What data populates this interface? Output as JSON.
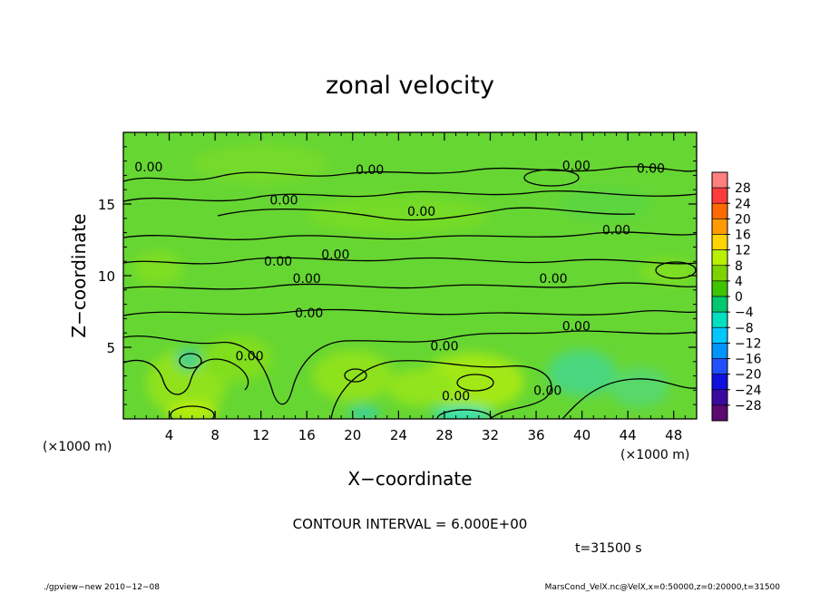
{
  "chart_data": {
    "type": "heatmap",
    "title": "zonal velocity",
    "xlabel": "X−coordinate",
    "ylabel": "Z−coordinate",
    "x_units_label": "(×1000 m)",
    "y_units_label": "(×1000 m)",
    "xlim": [
      0,
      50
    ],
    "ylim": [
      0,
      20
    ],
    "x_ticks": [
      4,
      8,
      12,
      16,
      20,
      24,
      28,
      32,
      36,
      40,
      44,
      48
    ],
    "y_ticks": [
      5,
      10,
      15
    ],
    "colorbar": {
      "labels": [
        "28",
        "24",
        "20",
        "16",
        "12",
        "8",
        "4",
        "0",
        "−4",
        "−8",
        "−12",
        "−16",
        "−20",
        "−24",
        "−28"
      ],
      "values": [
        28,
        24,
        20,
        16,
        12,
        8,
        4,
        0,
        -4,
        -8,
        -12,
        -16,
        -20,
        -24,
        -28
      ],
      "colors": [
        "#ff7f7f",
        "#ff3b3b",
        "#ff6a00",
        "#ff9a00",
        "#ffd400",
        "#b8f000",
        "#7ed200",
        "#3fc400",
        "#00c86e",
        "#00e0c0",
        "#00c8ff",
        "#0094ff",
        "#2050ff",
        "#1010e0",
        "#3a0aa0",
        "#5a0a70"
      ]
    },
    "field": {
      "background": "#66d633",
      "patches": [
        {
          "x": 5.5,
          "z": 2.5,
          "rx": 3.5,
          "rz": 2.4,
          "color": "#8fe21a"
        },
        {
          "x": 10,
          "z": 4.2,
          "rx": 3,
          "rz": 1.6,
          "color": "#80de1f"
        },
        {
          "x": 20,
          "z": 3.0,
          "rx": 3.5,
          "rz": 1.8,
          "color": "#8ee21a"
        },
        {
          "x": 30.5,
          "z": 2.6,
          "rx": 4.5,
          "rz": 2.0,
          "color": "#a2e815"
        },
        {
          "x": 26,
          "z": 2.2,
          "rx": 3,
          "rz": 1.3,
          "color": "#92e41a"
        },
        {
          "x": 6,
          "z": 0.5,
          "rx": 2.2,
          "rz": 0.8,
          "color": "#b4ec10"
        },
        {
          "x": 29.5,
          "z": 0.3,
          "rx": 2.6,
          "rz": 0.6,
          "color": "#2ee0b0"
        },
        {
          "x": 21,
          "z": 0.4,
          "rx": 1.4,
          "rz": 0.5,
          "color": "#3ad49a"
        },
        {
          "x": 5.7,
          "z": 4.2,
          "rx": 1.1,
          "rz": 0.8,
          "color": "#48d088"
        },
        {
          "x": 40,
          "z": 3.2,
          "rx": 3,
          "rz": 1.6,
          "color": "#4ad67e"
        },
        {
          "x": 45,
          "z": 2.2,
          "rx": 2.6,
          "rz": 1.4,
          "color": "#58d86a"
        },
        {
          "x": 3,
          "z": 10.5,
          "rx": 2.2,
          "rz": 1.2,
          "color": "#7ede22"
        },
        {
          "x": 47.5,
          "z": 10.3,
          "rx": 2.4,
          "rz": 0.9,
          "color": "#7ede22"
        },
        {
          "x": 24,
          "z": 14.2,
          "rx": 8,
          "rz": 1.4,
          "color": "#75db28"
        },
        {
          "x": 12,
          "z": 17.8,
          "rx": 6,
          "rz": 1.4,
          "color": "#74da29"
        },
        {
          "x": 42,
          "z": 15,
          "rx": 4,
          "rz": 1.2,
          "color": "#5cd540"
        }
      ],
      "contour_labels": [
        {
          "text": "0.00",
          "x": 2.2,
          "z": 17.6
        },
        {
          "text": "0.00",
          "x": 21.5,
          "z": 17.4
        },
        {
          "text": "0.00",
          "x": 39.5,
          "z": 17.7
        },
        {
          "text": "0.00",
          "x": 46,
          "z": 17.5
        },
        {
          "text": "0.00",
          "x": 14,
          "z": 15.3
        },
        {
          "text": "0.00",
          "x": 26,
          "z": 14.5
        },
        {
          "text": "0.00",
          "x": 43,
          "z": 13.2
        },
        {
          "text": "0.00",
          "x": 13.5,
          "z": 11.0
        },
        {
          "text": "0.00",
          "x": 18.5,
          "z": 11.5
        },
        {
          "text": "0.00",
          "x": 16,
          "z": 9.8
        },
        {
          "text": "0.00",
          "x": 37.5,
          "z": 9.8
        },
        {
          "text": "0.00",
          "x": 16.2,
          "z": 7.4
        },
        {
          "text": "0.00",
          "x": 39.5,
          "z": 6.5
        },
        {
          "text": "0.00",
          "x": 28,
          "z": 5.1
        },
        {
          "text": "0.00",
          "x": 11,
          "z": 4.4
        },
        {
          "text": "0.00",
          "x": 29,
          "z": 1.6
        },
        {
          "text": "0.00",
          "x": 37,
          "z": 2.0
        }
      ]
    },
    "contour_interval_text": "CONTOUR INTERVAL = 6.000E+00",
    "time_text": "t=31500 s"
  },
  "footer": {
    "left": "./gpview−new   2010−12−08",
    "right": "MarsCond_VelX.nc@VelX,x=0:50000,z=0:20000,t=31500"
  }
}
